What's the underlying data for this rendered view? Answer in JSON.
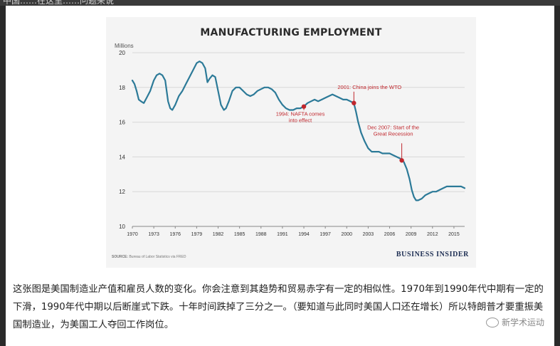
{
  "chart_data": {
    "type": "line",
    "title": "MANUFACTURING EMPLOYMENT",
    "ylabel": "Millions",
    "xlabel": "",
    "xlim": [
      1970,
      2016.5
    ],
    "ylim": [
      10,
      20
    ],
    "yticks": [
      "10",
      "12",
      "14",
      "16",
      "18",
      "20"
    ],
    "xticks": [
      "1970",
      "1973",
      "1976",
      "1979",
      "1982",
      "1985",
      "1988",
      "1991",
      "1994",
      "1997",
      "2000",
      "2003",
      "2006",
      "2009",
      "2012",
      "2015"
    ],
    "grid": true,
    "line_color": "#2c7a98",
    "marker_color": "#c0272d",
    "x": [
      1970.0,
      1970.3,
      1970.6,
      1970.9,
      1971.2,
      1971.6,
      1972.0,
      1972.5,
      1973.0,
      1973.4,
      1973.8,
      1974.2,
      1974.6,
      1975.0,
      1975.3,
      1975.6,
      1976.0,
      1976.5,
      1977.0,
      1977.5,
      1978.0,
      1978.5,
      1979.0,
      1979.4,
      1979.8,
      1980.2,
      1980.5,
      1980.8,
      1981.2,
      1981.6,
      1982.0,
      1982.4,
      1982.8,
      1983.1,
      1983.5,
      1984.0,
      1984.5,
      1985.0,
      1985.5,
      1986.0,
      1986.5,
      1987.0,
      1987.5,
      1988.0,
      1988.5,
      1989.0,
      1989.5,
      1990.0,
      1990.5,
      1991.0,
      1991.5,
      1992.0,
      1992.5,
      1993.0,
      1993.5,
      1994.0,
      1994.5,
      1995.0,
      1995.5,
      1996.0,
      1996.5,
      1997.0,
      1997.5,
      1998.0,
      1998.5,
      1999.0,
      1999.5,
      2000.0,
      2000.5,
      2001.0,
      2001.3,
      2001.6,
      2002.0,
      2002.5,
      2003.0,
      2003.5,
      2004.0,
      2004.5,
      2005.0,
      2005.5,
      2006.0,
      2006.5,
      2007.0,
      2007.5,
      2008.0,
      2008.4,
      2008.8,
      2009.1,
      2009.4,
      2009.7,
      2010.0,
      2010.5,
      2011.0,
      2011.5,
      2012.0,
      2012.5,
      2013.0,
      2013.5,
      2014.0,
      2014.5,
      2015.0,
      2015.5,
      2016.0,
      2016.5
    ],
    "y": [
      18.4,
      18.2,
      17.8,
      17.3,
      17.2,
      17.1,
      17.4,
      17.8,
      18.4,
      18.7,
      18.8,
      18.7,
      18.4,
      17.2,
      16.8,
      16.7,
      17.0,
      17.5,
      17.8,
      18.2,
      18.6,
      19.0,
      19.4,
      19.5,
      19.4,
      19.1,
      18.3,
      18.5,
      18.7,
      18.6,
      17.8,
      17.0,
      16.7,
      16.8,
      17.2,
      17.8,
      18.0,
      18.0,
      17.8,
      17.6,
      17.5,
      17.6,
      17.8,
      17.9,
      18.0,
      18.0,
      17.9,
      17.7,
      17.3,
      17.0,
      16.8,
      16.7,
      16.7,
      16.8,
      16.8,
      16.9,
      17.1,
      17.2,
      17.3,
      17.2,
      17.3,
      17.4,
      17.5,
      17.6,
      17.5,
      17.4,
      17.3,
      17.3,
      17.2,
      17.1,
      16.6,
      16.0,
      15.4,
      14.9,
      14.5,
      14.3,
      14.3,
      14.3,
      14.2,
      14.2,
      14.2,
      14.1,
      14.0,
      13.9,
      13.7,
      13.3,
      12.7,
      12.1,
      11.7,
      11.5,
      11.5,
      11.6,
      11.8,
      11.9,
      12.0,
      12.0,
      12.1,
      12.2,
      12.3,
      12.3,
      12.3,
      12.3,
      12.3,
      12.2
    ],
    "annotations": [
      {
        "x": 1994.0,
        "y": 16.9,
        "text": "1994: NAFTA comes into effect",
        "lines": [
          "1994: NAFTA comes",
          "into effect"
        ]
      },
      {
        "x": 2001.0,
        "y": 17.1,
        "text": "2001: China joins the WTO",
        "lines": [
          "2001: China joins the WTO"
        ]
      },
      {
        "x": 2007.7,
        "y": 13.8,
        "text": "Dec 2007: Start of the Great Recession",
        "lines": [
          "Dec 2007: Start of the",
          "Great Recession"
        ]
      }
    ]
  },
  "source_label": "SOURCE:",
  "source_text": "Bureau of Labor Statistics via FRED",
  "brand": "BUSINESS INSIDER",
  "caption": "这张图是美国制造业产值和雇员人数的变化。你会注意到其趋势和贸易赤字有一定的相似性。1970年到1990年代中期有一定的下滑，1990年代中期以后断崖式下跌。十年时间跌掉了三分之一。（要知道与此同时美国人口还在增长）所以特朗普才要重振美国制造业，为美国工人夺回工作岗位。",
  "watermark": "新学术运动",
  "top_fragment": "中国……在这里……问题来说"
}
